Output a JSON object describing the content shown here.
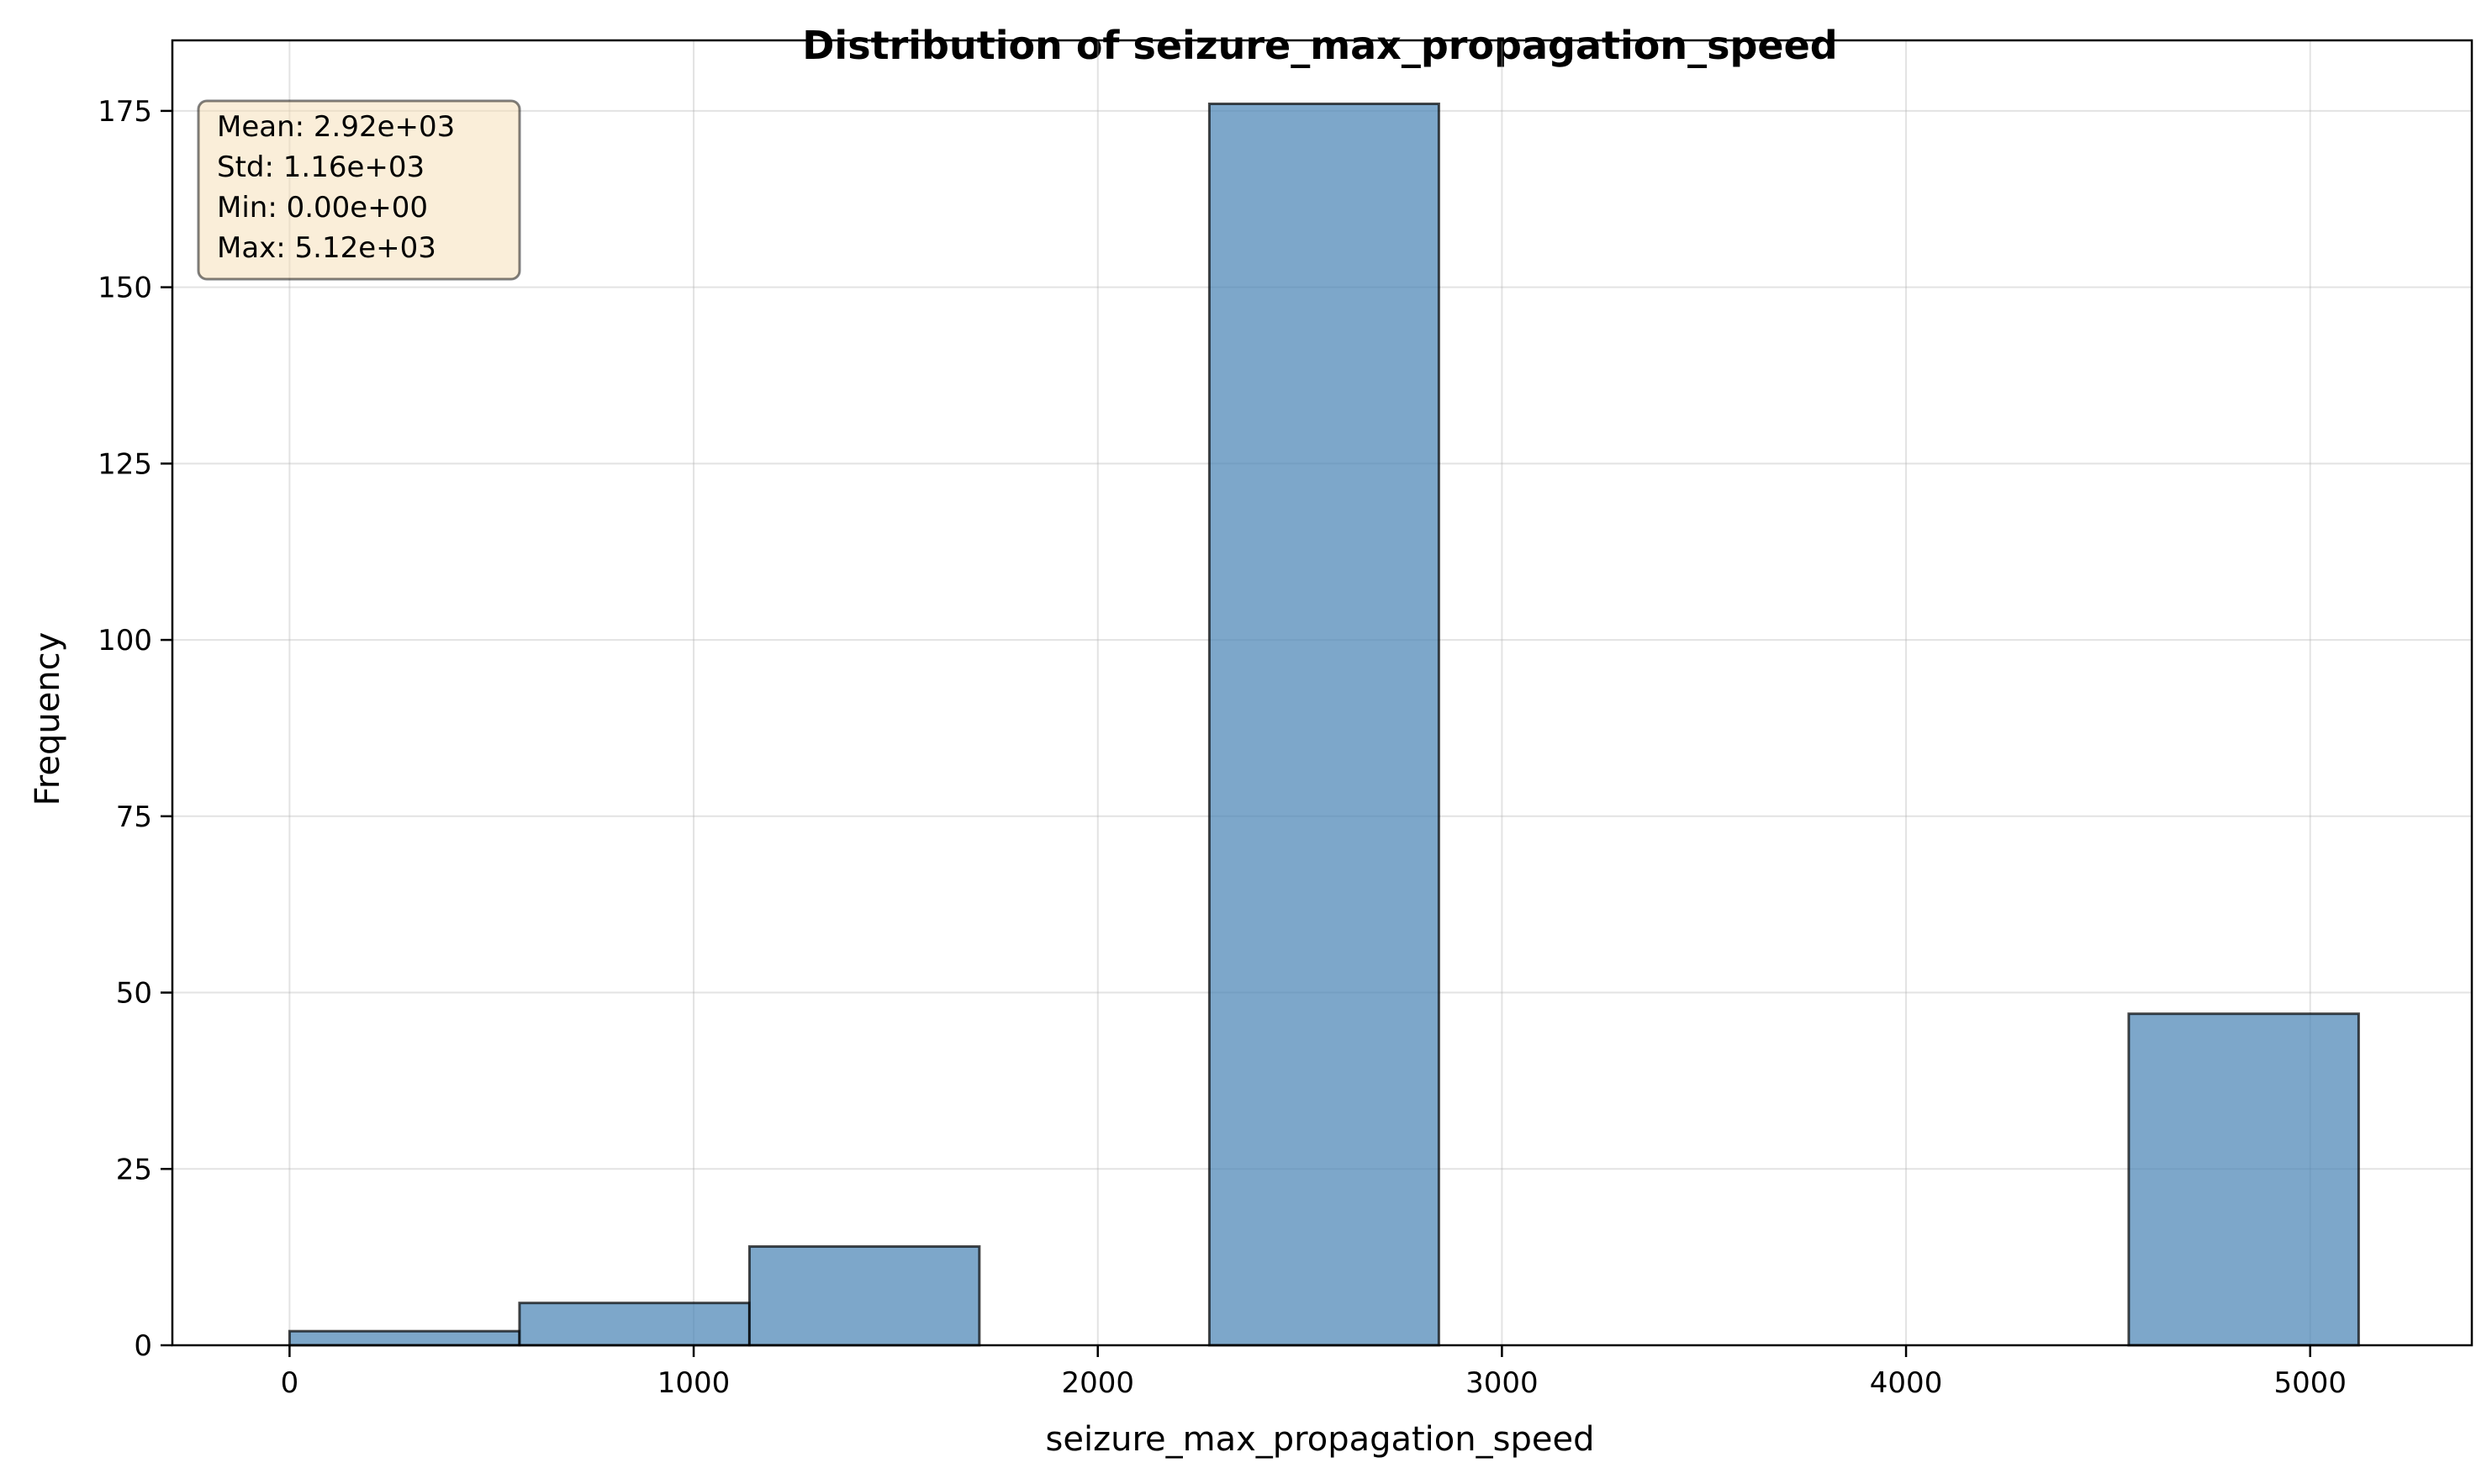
{
  "chart_data": {
    "type": "bar",
    "title": "Distribution of seizure_max_propagation_speed",
    "xlabel": "seizure_max_propagation_speed",
    "ylabel": "Frequency",
    "xlim": [
      -290,
      5400
    ],
    "ylim": [
      0,
      185
    ],
    "xticks": [
      0,
      1000,
      2000,
      3000,
      4000,
      5000
    ],
    "yticks": [
      0,
      25,
      50,
      75,
      100,
      125,
      150,
      175
    ],
    "grid": true,
    "bar_color": "#4682b4",
    "bins": [
      {
        "x0": 0,
        "x1": 569,
        "count": 2
      },
      {
        "x0": 569,
        "x1": 1138,
        "count": 6
      },
      {
        "x0": 1138,
        "x1": 1707,
        "count": 14
      },
      {
        "x0": 1707,
        "x1": 2276,
        "count": 0
      },
      {
        "x0": 2276,
        "x1": 2844,
        "count": 176
      },
      {
        "x0": 2844,
        "x1": 3413,
        "count": 0
      },
      {
        "x0": 3413,
        "x1": 3982,
        "count": 0
      },
      {
        "x0": 3982,
        "x1": 4551,
        "count": 0
      },
      {
        "x0": 4551,
        "x1": 5120,
        "count": 47
      }
    ],
    "stats": {
      "mean": "Mean: 2.92e+03",
      "std": "Std: 1.16e+03",
      "min": "Min: 0.00e+00",
      "max": "Max: 5.12e+03"
    },
    "stats_box_color": "#f5deb3"
  }
}
